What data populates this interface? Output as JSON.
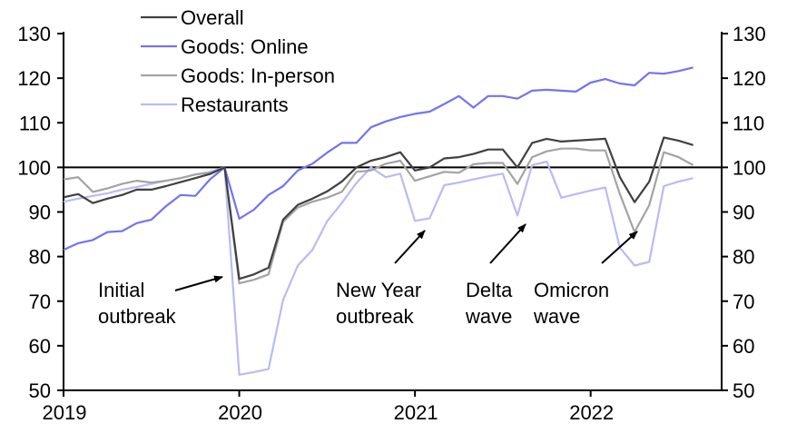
{
  "chart_data": {
    "type": "line",
    "title": "",
    "xlabel": "",
    "ylabel": "",
    "ylim": [
      50,
      130
    ],
    "yticks": [
      "50",
      "60",
      "70",
      "80",
      "90",
      "100",
      "110",
      "120",
      "130"
    ],
    "xticks": [
      "2019",
      "2020",
      "2021",
      "2022"
    ],
    "x_start": "2019-01",
    "frequency": "monthly",
    "reference_line": 100,
    "legend_position": "top-left",
    "series": [
      {
        "name": "Overall",
        "color": "#404040",
        "values": [
          93.3,
          94,
          92,
          93,
          93.8,
          95,
          95,
          95.8,
          96.7,
          97.6,
          98.5,
          100,
          75,
          76,
          77.5,
          88.3,
          91.6,
          93,
          94.6,
          96.8,
          100,
          101.5,
          102.3,
          103.4,
          99.3,
          100,
          102,
          102.3,
          103,
          104,
          104,
          100,
          105.5,
          106.4,
          105.8,
          106,
          106.2,
          106.4,
          97.8,
          92.2,
          96.8,
          106.7,
          106,
          105
        ]
      },
      {
        "name": "Goods: Online",
        "color": "#7373f2",
        "values": [
          81.5,
          83,
          83.7,
          85.5,
          85.7,
          87.5,
          88.3,
          91.3,
          93.8,
          93.6,
          97.3,
          100,
          88.5,
          90.5,
          93.8,
          95.8,
          99.3,
          100.8,
          103.3,
          105.5,
          105.5,
          109,
          110.3,
          111.3,
          112,
          112.5,
          114.2,
          116,
          113.4,
          116,
          116,
          115.4,
          117.2,
          117.4,
          117.2,
          117,
          119,
          119.8,
          118.8,
          118.4,
          121.2,
          121,
          121.6,
          122.4
        ]
      },
      {
        "name": "Goods: In-person",
        "color": "#a3a3a3",
        "values": [
          97.3,
          97.8,
          94.5,
          95.3,
          96.3,
          97,
          96.6,
          97,
          97.6,
          98.4,
          98.8,
          100,
          74,
          74.8,
          76,
          87.8,
          91,
          92.3,
          93.2,
          94.5,
          99,
          99.3,
          100.8,
          101.5,
          97,
          98,
          99,
          98.8,
          100.7,
          101,
          101,
          96.3,
          102.3,
          103.6,
          104.2,
          104.2,
          103.8,
          103.8,
          94,
          85.5,
          91.5,
          103.4,
          102.3,
          100.5
        ]
      },
      {
        "name": "Restaurants",
        "color": "#babaf7",
        "values": [
          92.3,
          93,
          93.6,
          94.2,
          95,
          95.6,
          96.3,
          97,
          97.6,
          98.4,
          99,
          100,
          53.5,
          54.1,
          54.8,
          70.3,
          78,
          81.5,
          87.9,
          92,
          96.5,
          100,
          97.8,
          98.6,
          88,
          88.6,
          96,
          96.6,
          97.3,
          98,
          98.6,
          89.2,
          100.5,
          101.3,
          93.2,
          94,
          94.8,
          95.5,
          82,
          78,
          78.8,
          95.8,
          96.8,
          97.6
        ]
      }
    ],
    "annotations": [
      {
        "lines": [
          "Initial",
          "outbreak"
        ],
        "target_month_index": 11
      },
      {
        "lines": [
          "New Year",
          "outbreak"
        ],
        "target_month_index": 25
      },
      {
        "lines": [
          "Delta",
          "wave"
        ],
        "target_month_index": 31
      },
      {
        "lines": [
          "Omicron",
          "wave"
        ],
        "target_month_index": 39
      }
    ]
  }
}
